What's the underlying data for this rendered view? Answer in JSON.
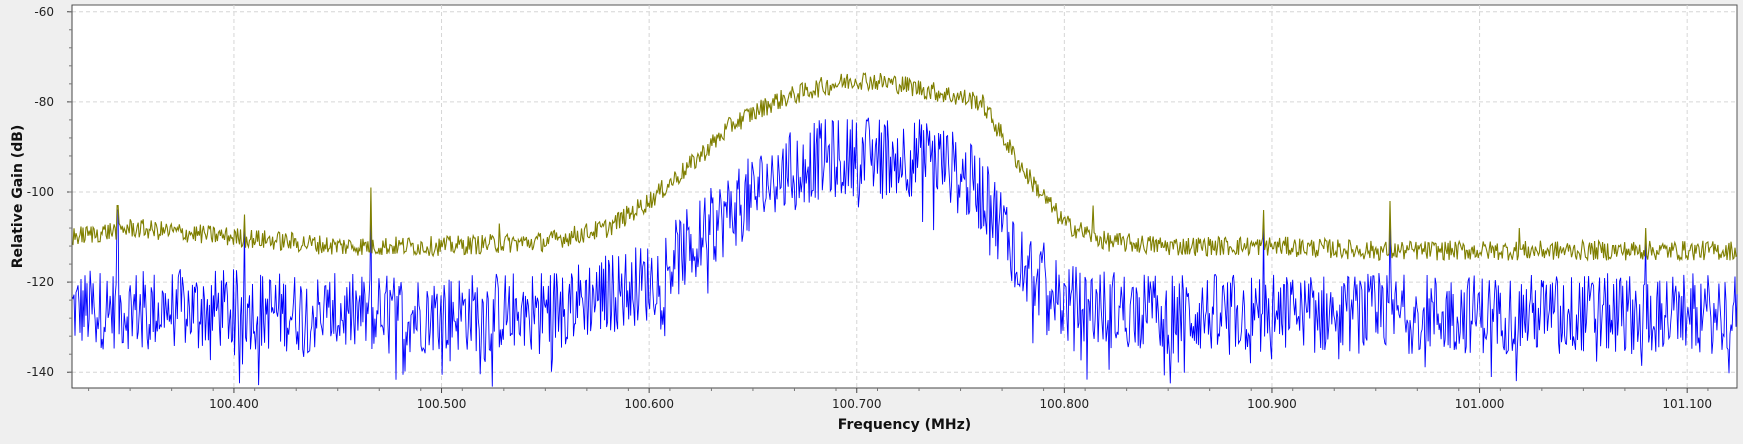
{
  "chart_data": {
    "type": "line",
    "xlabel": "Frequency (MHz)",
    "ylabel": "Relative Gain (dB)",
    "xlim": [
      100.322,
      101.124
    ],
    "ylim": [
      -143.5,
      -58.5
    ],
    "x_ticks": [
      100.4,
      100.5,
      100.6,
      100.7,
      100.8,
      100.9,
      101.0,
      101.1
    ],
    "x_tick_labels": [
      "100.400",
      "100.500",
      "100.600",
      "100.700",
      "100.800",
      "100.900",
      "101.000",
      "101.100"
    ],
    "y_ticks": [
      -60,
      -80,
      -100,
      -120,
      -140
    ],
    "y_tick_labels": [
      "-60",
      "-80",
      "-100",
      "-120",
      "-140"
    ],
    "grid": true,
    "series": [
      {
        "color": "#7f7f00",
        "x": [
          100.322,
          100.35,
          100.4,
          100.45,
          100.5,
          100.55,
          100.58,
          100.6,
          100.62,
          100.64,
          100.66,
          100.68,
          100.7,
          100.72,
          100.74,
          100.76,
          100.78,
          100.8,
          100.82,
          100.85,
          100.9,
          100.95,
          101.0,
          101.05,
          101.1,
          101.124
        ],
        "values": [
          -110,
          -108,
          -110,
          -112,
          -112,
          -111,
          -108,
          -102,
          -94,
          -85,
          -80,
          -77,
          -75,
          -76,
          -78,
          -80,
          -95,
          -107,
          -111,
          -112,
          -112,
          -113,
          -113,
          -113,
          -113,
          -113
        ],
        "spikes": [
          [
            100.344,
            -103
          ],
          [
            100.405,
            -105
          ],
          [
            100.466,
            -99
          ],
          [
            100.528,
            -107
          ],
          [
            100.814,
            -103
          ],
          [
            100.896,
            -104
          ],
          [
            100.957,
            -102
          ],
          [
            101.019,
            -108
          ],
          [
            101.08,
            -108
          ]
        ]
      },
      {
        "color": "#0000ff",
        "x": [
          100.322,
          100.35,
          100.4,
          100.45,
          100.5,
          100.55,
          100.6,
          100.62,
          100.64,
          100.66,
          100.68,
          100.7,
          100.72,
          100.74,
          100.76,
          100.78,
          100.8,
          100.85,
          100.9,
          100.95,
          101.0,
          101.05,
          101.1,
          101.124
        ],
        "values": [
          -126,
          -126,
          -126,
          -127,
          -127,
          -126,
          -120,
          -112,
          -104,
          -97,
          -93,
          -92,
          -92,
          -93,
          -100,
          -115,
          -125,
          -127,
          -127,
          -127,
          -127,
          -127,
          -127,
          -127
        ],
        "spikes": [
          [
            100.344,
            -104
          ],
          [
            100.405,
            -107
          ],
          [
            100.466,
            -102
          ],
          [
            100.896,
            -107
          ],
          [
            100.957,
            -105
          ],
          [
            101.08,
            -110
          ]
        ]
      }
    ]
  }
}
